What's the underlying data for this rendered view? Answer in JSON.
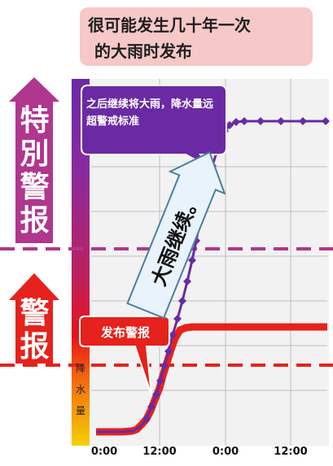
{
  "title": {
    "line1": "很可能发生几十年一次",
    "line2": "的大雨时发布"
  },
  "levels": {
    "special": {
      "label": "特別警报",
      "color": "#b0368e"
    },
    "warning": {
      "label": "警报",
      "color": "#e5221b"
    }
  },
  "gauge_label": [
    "降",
    "水",
    "量"
  ],
  "callouts": {
    "bubble": "之后继续将大雨，降水量远超警戒标准",
    "alert": "发布警报",
    "arrow": "大雨继续。"
  },
  "x_axis": {
    "ticks": [
      "0:00",
      "12:00",
      "0:00",
      "12:00"
    ]
  },
  "colors": {
    "purple_line": "#6a2aa3",
    "red_line": "#e5221b",
    "threshold_special": "#b0368e",
    "threshold_warning": "#e5221b"
  }
}
